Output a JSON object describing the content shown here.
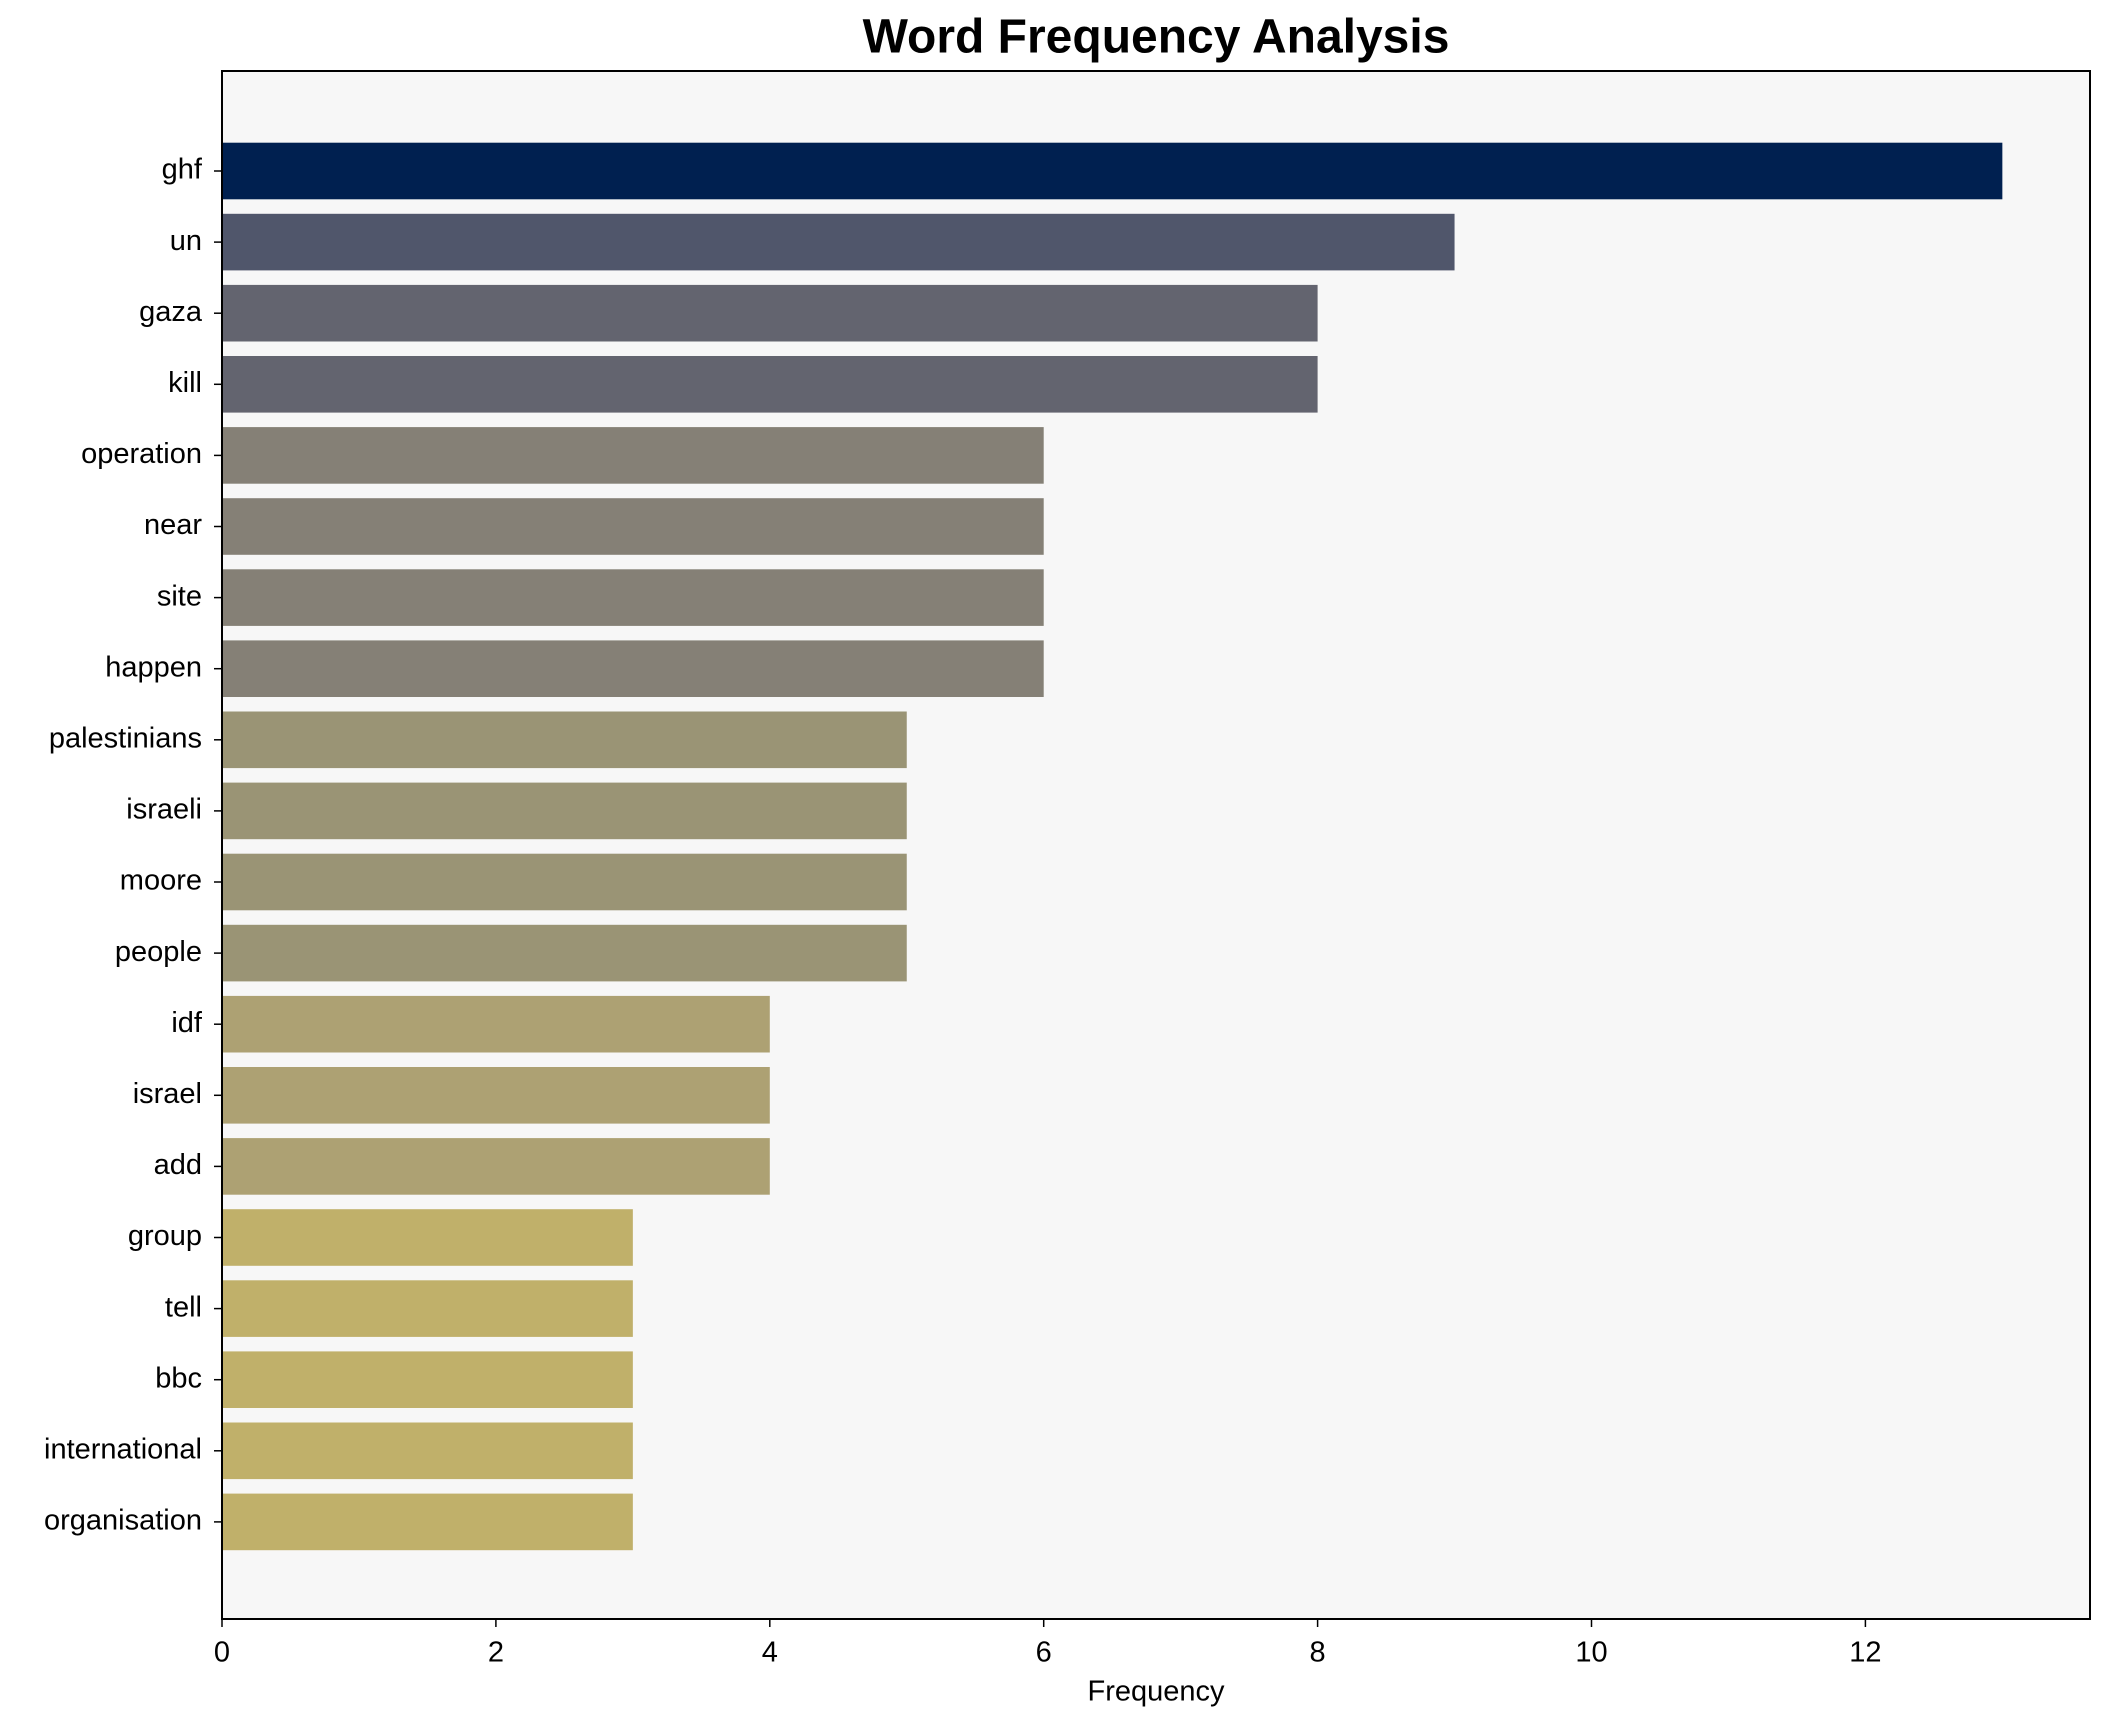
{
  "chart_data": {
    "type": "barh",
    "title": "Word Frequency Analysis",
    "x_label": "Frequency",
    "categories": [
      "ghf",
      "un",
      "gaza",
      "kill",
      "operation",
      "near",
      "site",
      "happen",
      "palestinians",
      "israeli",
      "moore",
      "people",
      "idf",
      "israel",
      "add",
      "group",
      "tell",
      "bbc",
      "international",
      "organisation"
    ],
    "values": [
      13,
      9,
      8,
      8,
      6,
      6,
      6,
      6,
      5,
      5,
      5,
      5,
      4,
      4,
      4,
      3,
      3,
      3,
      3,
      3
    ],
    "colors": [
      "#002050",
      "#50566b",
      "#63646f",
      "#63646f",
      "#858076",
      "#858076",
      "#858076",
      "#858076",
      "#9a9475",
      "#9a9475",
      "#9a9475",
      "#9a9475",
      "#ada173",
      "#ada173",
      "#ada173",
      "#c0b06a",
      "#c0b06a",
      "#c0b06a",
      "#c0b06a",
      "#c0b06a"
    ],
    "xlim": [
      0,
      13.64
    ],
    "xticks": [
      0,
      2,
      4,
      6,
      8,
      10,
      12
    ],
    "grid": false
  }
}
